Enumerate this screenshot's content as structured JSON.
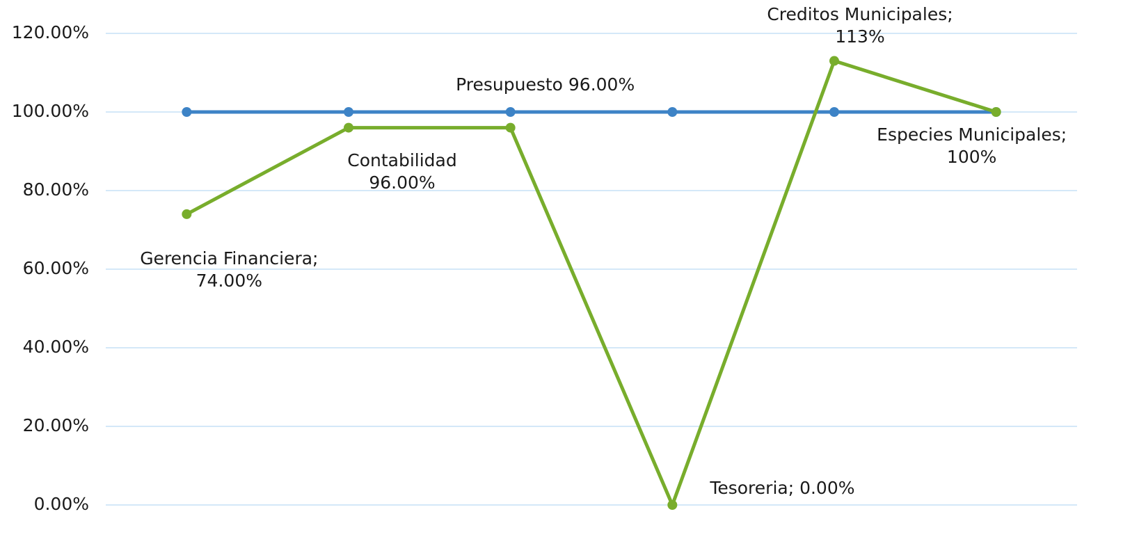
{
  "chart_data": {
    "type": "line",
    "ylim": [
      0,
      120
    ],
    "yticks": [
      {
        "value": 0,
        "label": "0.00%"
      },
      {
        "value": 20,
        "label": "20.00%"
      },
      {
        "value": 40,
        "label": "40.00%"
      },
      {
        "value": 60,
        "label": "60.00%"
      },
      {
        "value": 80,
        "label": "80.00%"
      },
      {
        "value": 100,
        "label": "100.00%"
      },
      {
        "value": 120,
        "label": "120.00%"
      }
    ],
    "grid": true,
    "series": [
      {
        "color": "#3d83c6",
        "values": [
          100,
          100,
          100,
          100,
          100,
          100
        ]
      },
      {
        "color": "#78ad2c",
        "values": [
          74,
          96,
          96,
          0,
          113,
          100
        ],
        "value_labels": [
          [
            "Gerencia Financiera;",
            "74.00%"
          ],
          [
            "Contabilidad",
            "96.00%"
          ],
          [
            "Presupuesto 96.00%"
          ],
          [
            "Tesoreria; 0.00%"
          ],
          [
            "Creditos Municipales;",
            "113%"
          ],
          [
            "Especies Municipales;",
            "100%"
          ]
        ]
      }
    ]
  }
}
